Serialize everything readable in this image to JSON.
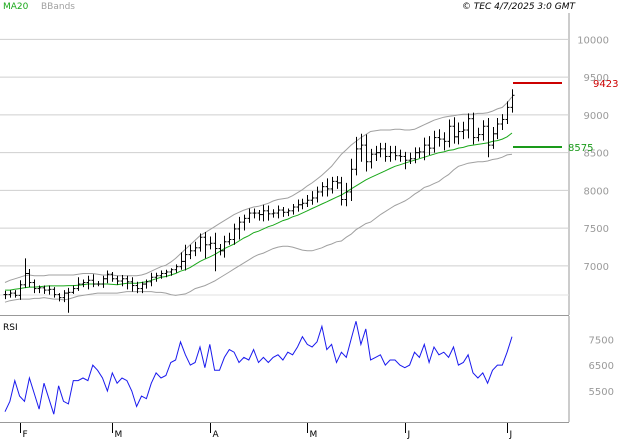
{
  "legend": {
    "ma_label": "MA20",
    "bb_label": "BBands"
  },
  "source_text": "© TEC 4/7/2025 3:0 GMT",
  "panel_label": "RSI",
  "colors": {
    "ma": "#1aa81a",
    "bands": "#a0a0a0",
    "bars": "#000000",
    "resistance": "#cc0000",
    "support": "#1a9a1a",
    "rsi": "#1a1aee",
    "grid": "#cfcfcf",
    "axis_text": "#9a9a9a"
  },
  "chart_data": [
    {
      "type": "ohlc",
      "title": "",
      "ylabel": "",
      "ylim": [
        6350,
        10350
      ],
      "y_ticks": [
        7000,
        7500,
        8000,
        8500,
        9000,
        9500,
        10000
      ],
      "y_tick_labels": [
        "7000",
        "7500",
        "8000",
        "8500",
        "9000",
        "9500",
        "10000"
      ],
      "x_ticks": [
        {
          "label": "F",
          "index": 3
        },
        {
          "label": "M",
          "index": 22
        },
        {
          "label": "A",
          "index": 42
        },
        {
          "label": "M",
          "index": 62
        },
        {
          "label": "J",
          "index": 82
        },
        {
          "label": "J",
          "index": 103
        }
      ],
      "grid": true,
      "legend_position": "top-left",
      "close": [
        6620,
        6640,
        6610,
        6750,
        6900,
        6780,
        6700,
        6710,
        6680,
        6690,
        6620,
        6580,
        6640,
        6650,
        6700,
        6760,
        6780,
        6810,
        6760,
        6760,
        6830,
        6890,
        6830,
        6800,
        6830,
        6790,
        6740,
        6700,
        6760,
        6790,
        6850,
        6870,
        6900,
        6920,
        6950,
        6990,
        7060,
        7150,
        7200,
        7240,
        7380,
        7280,
        7300,
        7230,
        7200,
        7320,
        7350,
        7490,
        7580,
        7630,
        7700,
        7700,
        7680,
        7730,
        7690,
        7700,
        7740,
        7710,
        7730,
        7780,
        7810,
        7830,
        7870,
        7900,
        7980,
        8050,
        8020,
        8120,
        8100,
        7880,
        7980,
        8280,
        8550,
        8600,
        8380,
        8480,
        8500,
        8550,
        8450,
        8500,
        8460,
        8450,
        8400,
        8420,
        8500,
        8510,
        8600,
        8560,
        8700,
        8680,
        8650,
        8850,
        8710,
        8780,
        8800,
        8950,
        8700,
        8740,
        8850,
        8600,
        8750,
        8880,
        8940,
        9100,
        9260
      ],
      "high_pad": [
        50,
        40,
        40,
        60,
        200,
        60,
        40,
        30,
        30,
        50,
        30,
        20,
        40,
        60,
        40,
        90,
        40,
        60,
        80,
        40,
        40,
        50,
        30,
        40,
        50,
        40,
        60,
        50,
        30,
        30,
        60,
        40,
        40,
        30,
        20,
        30,
        120,
        130,
        80,
        80,
        50,
        70,
        90,
        140,
        60,
        80,
        90,
        70,
        70,
        50,
        60,
        60,
        40,
        80,
        70,
        50,
        60,
        40,
        30,
        40,
        70,
        60,
        70,
        90,
        70,
        60,
        110,
        60,
        70,
        80,
        120,
        140,
        160,
        150,
        140,
        70,
        90,
        80,
        80,
        90,
        90,
        80,
        60,
        80,
        70,
        60,
        100,
        120,
        90,
        110,
        90,
        90,
        120,
        120,
        110,
        70,
        80,
        90,
        80,
        110,
        90,
        80,
        70,
        80,
        80
      ],
      "low_pad": [
        60,
        40,
        30,
        60,
        40,
        60,
        60,
        60,
        50,
        60,
        40,
        50,
        60,
        260,
        20,
        30,
        40,
        90,
        40,
        30,
        50,
        60,
        40,
        50,
        70,
        100,
        80,
        60,
        60,
        60,
        60,
        60,
        40,
        50,
        50,
        40,
        40,
        120,
        60,
        70,
        50,
        180,
        60,
        300,
        60,
        90,
        40,
        70,
        140,
        110,
        60,
        70,
        80,
        90,
        90,
        50,
        70,
        60,
        50,
        50,
        60,
        60,
        50,
        60,
        60,
        60,
        100,
        60,
        80,
        80,
        90,
        120,
        80,
        170,
        130,
        90,
        90,
        60,
        70,
        70,
        60,
        70,
        120,
        50,
        60,
        70,
        110,
        90,
        60,
        100,
        120,
        80,
        90,
        100,
        100,
        110,
        90,
        50,
        80,
        160,
        50,
        70,
        80,
        60,
        70
      ],
      "ma20": [
        6680,
        6680,
        6690,
        6700,
        6710,
        6720,
        6720,
        6725,
        6730,
        6735,
        6735,
        6735,
        6735,
        6740,
        6740,
        6745,
        6750,
        6760,
        6760,
        6760,
        6760,
        6760,
        6755,
        6750,
        6760,
        6770,
        6770,
        6770,
        6780,
        6790,
        6810,
        6830,
        6850,
        6860,
        6880,
        6900,
        6930,
        6950,
        6980,
        7020,
        7060,
        7090,
        7120,
        7150,
        7190,
        7230,
        7260,
        7290,
        7330,
        7370,
        7400,
        7440,
        7460,
        7490,
        7520,
        7540,
        7570,
        7600,
        7620,
        7650,
        7670,
        7700,
        7730,
        7760,
        7790,
        7820,
        7850,
        7880,
        7910,
        7940,
        7980,
        8020,
        8060,
        8100,
        8140,
        8170,
        8200,
        8230,
        8260,
        8290,
        8320,
        8340,
        8360,
        8380,
        8400,
        8420,
        8440,
        8460,
        8480,
        8500,
        8510,
        8530,
        8540,
        8560,
        8570,
        8590,
        8600,
        8610,
        8620,
        8630,
        8650,
        8660,
        8680,
        8710,
        8760
      ],
      "bb_upper": [
        6780,
        6810,
        6830,
        6850,
        6870,
        6880,
        6870,
        6870,
        6870,
        6880,
        6880,
        6880,
        6880,
        6880,
        6880,
        6890,
        6900,
        6900,
        6900,
        6890,
        6880,
        6880,
        6880,
        6870,
        6870,
        6870,
        6870,
        6870,
        6880,
        6900,
        6930,
        6960,
        6990,
        7010,
        7050,
        7100,
        7160,
        7220,
        7280,
        7340,
        7400,
        7440,
        7480,
        7520,
        7560,
        7600,
        7640,
        7680,
        7710,
        7740,
        7760,
        7780,
        7790,
        7810,
        7830,
        7860,
        7880,
        7890,
        7900,
        7930,
        7970,
        8010,
        8060,
        8100,
        8150,
        8200,
        8260,
        8320,
        8400,
        8480,
        8540,
        8600,
        8650,
        8700,
        8740,
        8780,
        8790,
        8800,
        8800,
        8800,
        8810,
        8810,
        8800,
        8800,
        8810,
        8840,
        8870,
        8900,
        8930,
        8950,
        8970,
        8980,
        8990,
        9000,
        9010,
        9010,
        9010,
        9020,
        9020,
        9030,
        9050,
        9080,
        9100,
        9160,
        9240
      ],
      "bb_lower": [
        6520,
        6540,
        6550,
        6560,
        6560,
        6560,
        6570,
        6570,
        6580,
        6570,
        6560,
        6560,
        6550,
        6560,
        6580,
        6600,
        6610,
        6620,
        6630,
        6640,
        6640,
        6640,
        6640,
        6640,
        6650,
        6660,
        6660,
        6660,
        6660,
        6660,
        6660,
        6650,
        6650,
        6640,
        6620,
        6610,
        6620,
        6630,
        6660,
        6700,
        6720,
        6740,
        6770,
        6800,
        6840,
        6880,
        6920,
        6960,
        7000,
        7040,
        7080,
        7120,
        7150,
        7170,
        7200,
        7230,
        7250,
        7260,
        7260,
        7250,
        7230,
        7210,
        7200,
        7200,
        7220,
        7240,
        7270,
        7290,
        7320,
        7330,
        7380,
        7420,
        7480,
        7520,
        7560,
        7580,
        7630,
        7680,
        7720,
        7760,
        7800,
        7830,
        7860,
        7900,
        7950,
        7990,
        8040,
        8060,
        8090,
        8120,
        8170,
        8210,
        8270,
        8320,
        8340,
        8360,
        8370,
        8380,
        8380,
        8390,
        8410,
        8420,
        8440,
        8470,
        8480
      ],
      "resistance": {
        "value": 9423,
        "label": "9423"
      },
      "support": {
        "value": 8575,
        "label": "8575"
      }
    },
    {
      "type": "line",
      "title": "RSI",
      "ylim": [
        4300,
        8400
      ],
      "y_ticks": [
        5500,
        6500,
        7500
      ],
      "y_tick_labels": [
        "5500",
        "6500",
        "7500"
      ],
      "grid": false,
      "values": [
        4700,
        5100,
        5900,
        5300,
        5100,
        6000,
        5400,
        4800,
        5800,
        5200,
        4600,
        5700,
        5100,
        5000,
        5900,
        5900,
        6000,
        5900,
        6500,
        6300,
        6000,
        5500,
        6200,
        5800,
        6000,
        5900,
        5500,
        4900,
        5300,
        5200,
        5800,
        6200,
        6000,
        6100,
        6600,
        6700,
        7400,
        6900,
        6500,
        6600,
        7200,
        6400,
        7300,
        6300,
        6300,
        6800,
        7100,
        7000,
        6600,
        6800,
        6700,
        7100,
        6600,
        6800,
        6600,
        6800,
        6900,
        6700,
        7000,
        6900,
        7200,
        7600,
        7300,
        7200,
        7400,
        8000,
        7100,
        7300,
        6600,
        7000,
        6800,
        7500,
        8200,
        7300,
        7900,
        6700,
        6800,
        6900,
        6500,
        6700,
        6700,
        6500,
        6400,
        6500,
        7000,
        6800,
        7300,
        6600,
        7200,
        6900,
        7000,
        6800,
        7200,
        6500,
        6600,
        6900,
        6200,
        6000,
        6200,
        5800,
        6300,
        6500,
        6500,
        7000,
        7600
      ]
    }
  ]
}
